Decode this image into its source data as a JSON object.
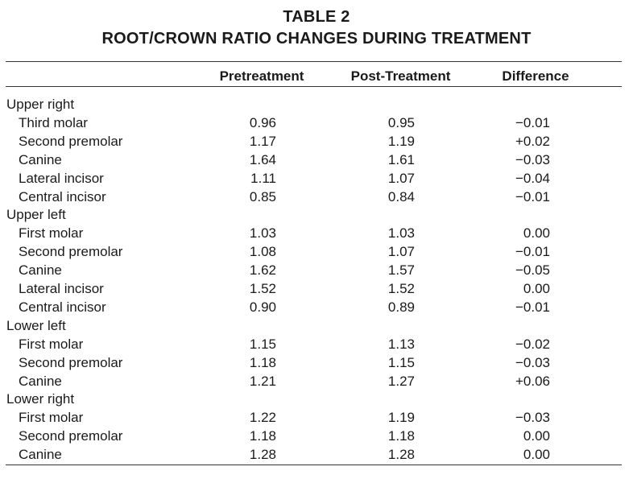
{
  "table": {
    "title_line1": "TABLE 2",
    "title_line2": "ROOT/CROWN RATIO CHANGES DURING TREATMENT",
    "columns": [
      "Pretreatment",
      "Post-Treatment",
      "Difference"
    ],
    "rows": [
      {
        "type": "group",
        "label": "Upper right"
      },
      {
        "type": "item",
        "label": "Third molar",
        "pre": "0.96",
        "post": "0.95",
        "diff": "−0.01"
      },
      {
        "type": "item",
        "label": "Second premolar",
        "pre": "1.17",
        "post": "1.19",
        "diff": "+0.02"
      },
      {
        "type": "item",
        "label": "Canine",
        "pre": "1.64",
        "post": "1.61",
        "diff": "−0.03"
      },
      {
        "type": "item",
        "label": "Lateral incisor",
        "pre": "1.11",
        "post": "1.07",
        "diff": "−0.04"
      },
      {
        "type": "item",
        "label": "Central incisor",
        "pre": "0.85",
        "post": "0.84",
        "diff": "−0.01"
      },
      {
        "type": "group",
        "label": "Upper left"
      },
      {
        "type": "item",
        "label": "First molar",
        "pre": "1.03",
        "post": "1.03",
        "diff": "0.00"
      },
      {
        "type": "item",
        "label": "Second premolar",
        "pre": "1.08",
        "post": "1.07",
        "diff": "−0.01"
      },
      {
        "type": "item",
        "label": "Canine",
        "pre": "1.62",
        "post": "1.57",
        "diff": "−0.05"
      },
      {
        "type": "item",
        "label": "Lateral incisor",
        "pre": "1.52",
        "post": "1.52",
        "diff": "0.00"
      },
      {
        "type": "item",
        "label": "Central incisor",
        "pre": "0.90",
        "post": "0.89",
        "diff": "−0.01"
      },
      {
        "type": "group",
        "label": "Lower left"
      },
      {
        "type": "item",
        "label": "First molar",
        "pre": "1.15",
        "post": "1.13",
        "diff": "−0.02"
      },
      {
        "type": "item",
        "label": "Second premolar",
        "pre": "1.18",
        "post": "1.15",
        "diff": "−0.03"
      },
      {
        "type": "item",
        "label": "Canine",
        "pre": "1.21",
        "post": "1.27",
        "diff": "+0.06"
      },
      {
        "type": "group",
        "label": "Lower right"
      },
      {
        "type": "item",
        "label": "First molar",
        "pre": "1.22",
        "post": "1.19",
        "diff": "−0.03"
      },
      {
        "type": "item",
        "label": "Second premolar",
        "pre": "1.18",
        "post": "1.18",
        "diff": "0.00"
      },
      {
        "type": "item",
        "label": "Canine",
        "pre": "1.28",
        "post": "1.28",
        "diff": "0.00"
      }
    ]
  }
}
